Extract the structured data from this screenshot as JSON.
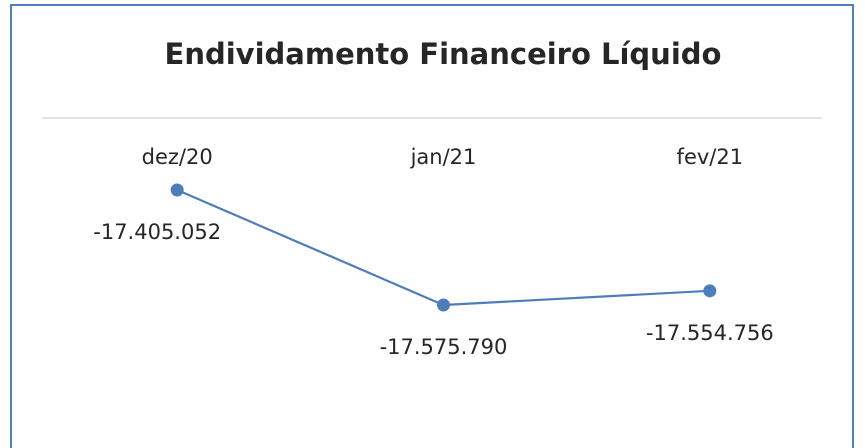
{
  "chart_data": {
    "type": "line",
    "title": "Endividamento Financeiro Líquido",
    "categories": [
      "dez/20",
      "jan/21",
      "fev/21"
    ],
    "values": [
      -17405052,
      -17575790,
      -17554756
    ],
    "value_labels": [
      "-17.405.052",
      "-17.575.790",
      "-17.554.756"
    ],
    "color": "#4f7dbc"
  }
}
